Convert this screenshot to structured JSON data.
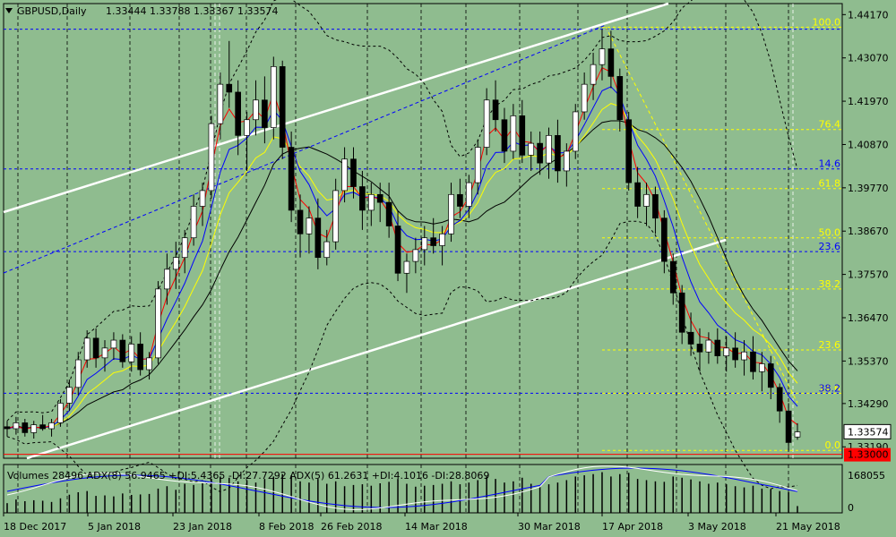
{
  "header": {
    "symbol_label": "GBPUSD,Daily",
    "ohlc": "1.33444 1.33788 1.33367 1.33574"
  },
  "indicator_header": "Volumes 28496  ADX(8) 56.9465 +DI:5.4365 -DI:27.7292  ADX(5) 61.2631 +DI:4.1016 -DI:28.8069",
  "price_axis": [
    "1.44170",
    "1.43070",
    "1.41970",
    "1.40870",
    "1.39770",
    "1.38670",
    "1.37570",
    "1.36470",
    "1.35370",
    "1.34290",
    "1.33190"
  ],
  "current_price": "1.33574",
  "alert_price": "1.33000",
  "volume_axis": [
    "168055",
    "0"
  ],
  "date_labels": [
    "18 Dec 2017",
    "5 Jan 2018",
    "23 Jan 2018",
    "8 Feb 2018",
    "26 Feb 2018",
    "14 Mar 2018",
    "30 Mar 2018",
    "17 Apr 2018",
    "3 May 2018",
    "21 May 2018"
  ],
  "fib_levels": [
    {
      "label": "100.0",
      "color": "#ffff00"
    },
    {
      "label": "76.4",
      "color": "#ffff00"
    },
    {
      "label": "61.8",
      "color": "#ffff00"
    },
    {
      "label": "50.0",
      "color": "#ffff00"
    },
    {
      "label": "38.2",
      "color": "#ffff00"
    },
    {
      "label": "23.6",
      "color": "#ffff00"
    },
    {
      "label": "14.6",
      "color": "#ffff00"
    },
    {
      "label": "0.0",
      "color": "#ffff00"
    }
  ],
  "blue_levels": [
    {
      "label": "14.6"
    },
    {
      "label": "23.6"
    },
    {
      "label": "38.2"
    }
  ],
  "colors": {
    "background": "#8fbc8f",
    "bull": "#ffffff",
    "bear": "#000000",
    "ma_red": "#ff0000",
    "ma_blue": "#0000ff",
    "ma_yellow": "#ffff00",
    "ma_black": "#000000",
    "alert": "#ff0000"
  },
  "chart_data": {
    "type": "candlestick",
    "ylim": [
      1.329,
      1.4445
    ],
    "candles": [
      [
        1.337,
        1.3385,
        1.3345,
        1.3365
      ],
      [
        1.3365,
        1.3395,
        1.335,
        1.338
      ],
      [
        1.338,
        1.339,
        1.3345,
        1.3355
      ],
      [
        1.3355,
        1.3385,
        1.334,
        1.3375
      ],
      [
        1.3375,
        1.34,
        1.336,
        1.3365
      ],
      [
        1.3365,
        1.339,
        1.3345,
        1.338
      ],
      [
        1.338,
        1.344,
        1.337,
        1.343
      ],
      [
        1.343,
        1.349,
        1.341,
        1.347
      ],
      [
        1.347,
        1.356,
        1.345,
        1.354
      ],
      [
        1.354,
        1.3615,
        1.352,
        1.3595
      ],
      [
        1.3595,
        1.362,
        1.352,
        1.3545
      ],
      [
        1.3545,
        1.359,
        1.351,
        1.357
      ],
      [
        1.357,
        1.361,
        1.354,
        1.359
      ],
      [
        1.359,
        1.3605,
        1.352,
        1.3535
      ],
      [
        1.3535,
        1.36,
        1.351,
        1.358
      ],
      [
        1.358,
        1.361,
        1.35,
        1.3515
      ],
      [
        1.3515,
        1.356,
        1.349,
        1.3545
      ],
      [
        1.3545,
        1.374,
        1.353,
        1.372
      ],
      [
        1.372,
        1.381,
        1.368,
        1.377
      ],
      [
        1.377,
        1.384,
        1.372,
        1.38
      ],
      [
        1.38,
        1.387,
        1.376,
        1.385
      ],
      [
        1.385,
        1.396,
        1.383,
        1.393
      ],
      [
        1.393,
        1.399,
        1.388,
        1.397
      ],
      [
        1.397,
        1.416,
        1.395,
        1.414
      ],
      [
        1.414,
        1.427,
        1.41,
        1.424
      ],
      [
        1.424,
        1.435,
        1.418,
        1.422
      ],
      [
        1.422,
        1.425,
        1.406,
        1.411
      ],
      [
        1.411,
        1.417,
        1.402,
        1.415
      ],
      [
        1.415,
        1.425,
        1.411,
        1.42
      ],
      [
        1.42,
        1.426,
        1.409,
        1.413
      ],
      [
        1.413,
        1.431,
        1.41,
        1.4285
      ],
      [
        1.4285,
        1.43,
        1.405,
        1.408
      ],
      [
        1.408,
        1.412,
        1.389,
        1.392
      ],
      [
        1.392,
        1.396,
        1.38,
        1.386
      ],
      [
        1.386,
        1.393,
        1.381,
        1.39
      ],
      [
        1.39,
        1.395,
        1.377,
        1.38
      ],
      [
        1.38,
        1.387,
        1.378,
        1.384
      ],
      [
        1.384,
        1.4,
        1.382,
        1.397
      ],
      [
        1.397,
        1.408,
        1.394,
        1.405
      ],
      [
        1.405,
        1.408,
        1.395,
        1.398
      ],
      [
        1.398,
        1.402,
        1.387,
        1.392
      ],
      [
        1.392,
        1.399,
        1.388,
        1.396
      ],
      [
        1.396,
        1.399,
        1.389,
        1.394
      ],
      [
        1.394,
        1.399,
        1.385,
        1.388
      ],
      [
        1.388,
        1.392,
        1.374,
        1.376
      ],
      [
        1.376,
        1.381,
        1.371,
        1.379
      ],
      [
        1.379,
        1.385,
        1.376,
        1.382
      ],
      [
        1.382,
        1.388,
        1.378,
        1.385
      ],
      [
        1.385,
        1.39,
        1.381,
        1.383
      ],
      [
        1.383,
        1.388,
        1.378,
        1.386
      ],
      [
        1.386,
        1.399,
        1.384,
        1.396
      ],
      [
        1.396,
        1.4,
        1.39,
        1.393
      ],
      [
        1.393,
        1.401,
        1.39,
        1.399
      ],
      [
        1.399,
        1.41,
        1.396,
        1.408
      ],
      [
        1.408,
        1.423,
        1.406,
        1.42
      ],
      [
        1.42,
        1.425,
        1.412,
        1.415
      ],
      [
        1.415,
        1.418,
        1.404,
        1.407
      ],
      [
        1.407,
        1.419,
        1.405,
        1.416
      ],
      [
        1.416,
        1.42,
        1.404,
        1.406
      ],
      [
        1.406,
        1.412,
        1.402,
        1.409
      ],
      [
        1.409,
        1.412,
        1.401,
        1.404
      ],
      [
        1.404,
        1.413,
        1.4,
        1.411
      ],
      [
        1.411,
        1.415,
        1.399,
        1.402
      ],
      [
        1.402,
        1.409,
        1.398,
        1.407
      ],
      [
        1.407,
        1.419,
        1.405,
        1.417
      ],
      [
        1.417,
        1.427,
        1.415,
        1.424
      ],
      [
        1.424,
        1.432,
        1.42,
        1.429
      ],
      [
        1.429,
        1.438,
        1.425,
        1.433
      ],
      [
        1.433,
        1.4376,
        1.423,
        1.426
      ],
      [
        1.426,
        1.428,
        1.412,
        1.415
      ],
      [
        1.415,
        1.417,
        1.397,
        1.399
      ],
      [
        1.399,
        1.403,
        1.39,
        1.393
      ],
      [
        1.393,
        1.399,
        1.388,
        1.396
      ],
      [
        1.396,
        1.398,
        1.386,
        1.39
      ],
      [
        1.39,
        1.392,
        1.376,
        1.379
      ],
      [
        1.379,
        1.381,
        1.368,
        1.371
      ],
      [
        1.371,
        1.373,
        1.358,
        1.361
      ],
      [
        1.361,
        1.366,
        1.355,
        1.358
      ],
      [
        1.358,
        1.362,
        1.351,
        1.356
      ],
      [
        1.356,
        1.361,
        1.353,
        1.359
      ],
      [
        1.359,
        1.362,
        1.353,
        1.355
      ],
      [
        1.355,
        1.36,
        1.351,
        1.357
      ],
      [
        1.357,
        1.361,
        1.352,
        1.354
      ],
      [
        1.354,
        1.359,
        1.35,
        1.356
      ],
      [
        1.356,
        1.36,
        1.349,
        1.351
      ],
      [
        1.351,
        1.356,
        1.346,
        1.353
      ],
      [
        1.353,
        1.355,
        1.344,
        1.347
      ],
      [
        1.347,
        1.348,
        1.338,
        1.341
      ],
      [
        1.341,
        1.343,
        1.331,
        1.333
      ],
      [
        1.3344,
        1.3379,
        1.3337,
        1.3357
      ]
    ],
    "volumes": [
      40,
      55,
      48,
      52,
      50,
      45,
      60,
      75,
      85,
      90,
      70,
      72,
      68,
      80,
      74,
      76,
      78,
      100,
      110,
      95,
      120,
      115,
      125,
      140,
      150,
      145,
      130,
      135,
      125,
      140,
      150,
      160,
      155,
      130,
      125,
      140,
      120,
      130,
      110,
      115,
      118,
      112,
      122,
      128,
      140,
      120,
      108,
      112,
      115,
      120,
      130,
      118,
      125,
      135,
      150,
      140,
      125,
      130,
      145,
      120,
      110,
      118,
      125,
      135,
      150,
      155,
      160,
      168,
      150,
      160,
      165,
      140,
      135,
      130,
      128,
      150,
      145,
      138,
      130,
      120,
      125,
      118,
      110,
      105,
      112,
      100,
      98,
      90,
      85,
      28
    ]
  }
}
